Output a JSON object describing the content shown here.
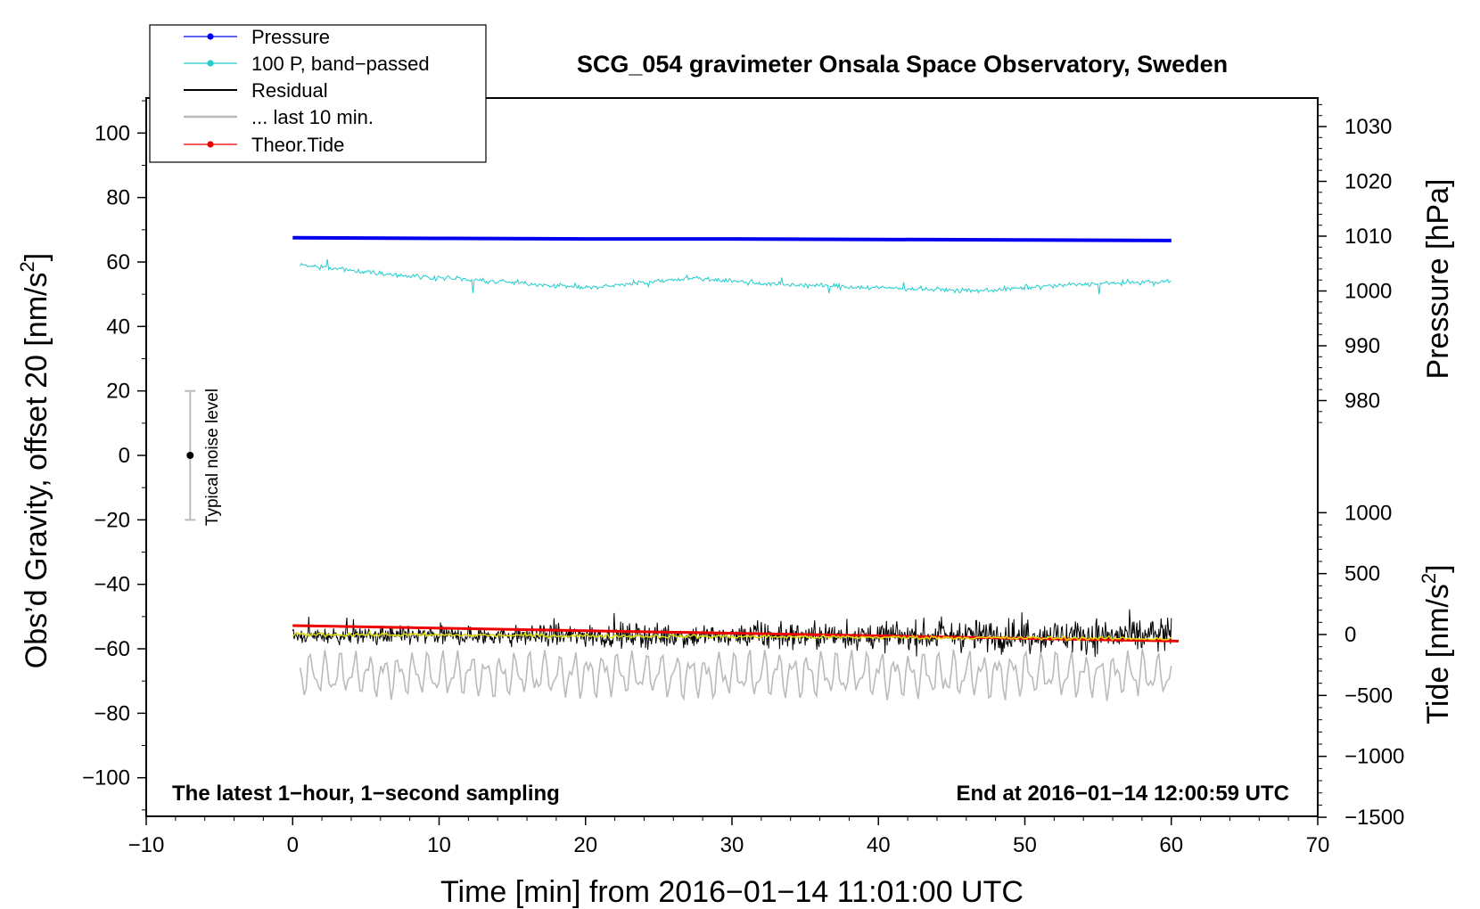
{
  "chart_data": {
    "type": "line",
    "title": "SCG_054 gravimeter Onsala Space Observatory, Sweden",
    "xlabel": "Time [min] from 2016−01−14 11:01:00 UTC",
    "ylabel_left": "Obs’d Gravity, offset 20 [nm/s",
    "ylabel_left_sup": "2",
    "ylabel_left_tail": "]",
    "ylabel_right_pressure": "Pressure [hPa]",
    "ylabel_right_tide": "Tide [nm/s",
    "ylabel_right_tide_sup": "2",
    "ylabel_right_tide_tail": "]",
    "xlim": [
      -10,
      70
    ],
    "ylim_left": [
      -110,
      112
    ],
    "x_ticks": [
      {
        "value": -10,
        "label": "−10"
      },
      {
        "value": 0,
        "label": "0"
      },
      {
        "value": 10,
        "label": "10"
      },
      {
        "value": 20,
        "label": "20"
      },
      {
        "value": 30,
        "label": "30"
      },
      {
        "value": 40,
        "label": "40"
      },
      {
        "value": 50,
        "label": "50"
      },
      {
        "value": 60,
        "label": "60"
      },
      {
        "value": 70,
        "label": "70"
      }
    ],
    "y_left_ticks": [
      {
        "value": 100,
        "label": "100"
      },
      {
        "value": 80,
        "label": "80"
      },
      {
        "value": 60,
        "label": "60"
      },
      {
        "value": 40,
        "label": "40"
      },
      {
        "value": 20,
        "label": "20"
      },
      {
        "value": 0,
        "label": "0"
      },
      {
        "value": -20,
        "label": "−20"
      },
      {
        "value": -40,
        "label": "−40"
      },
      {
        "value": -60,
        "label": "−60"
      },
      {
        "value": -80,
        "label": "−80"
      },
      {
        "value": -100,
        "label": "−100"
      }
    ],
    "pressure_axis": {
      "unit": "hPa",
      "ticks": [
        {
          "value": 1030,
          "label": "1030"
        },
        {
          "value": 1020,
          "label": "1020"
        },
        {
          "value": 1010,
          "label": "1010"
        },
        {
          "value": 1000,
          "label": "1000"
        },
        {
          "value": 990,
          "label": "990"
        },
        {
          "value": 980,
          "label": "980"
        }
      ]
    },
    "tide_axis": {
      "unit": "nm/s2",
      "ticks": [
        {
          "value": 1000,
          "label": "1000"
        },
        {
          "value": 500,
          "label": "500"
        },
        {
          "value": 0,
          "label": "0"
        },
        {
          "value": -500,
          "label": "−500"
        },
        {
          "value": -1000,
          "label": "−1000"
        },
        {
          "value": -1500,
          "label": "−1500"
        }
      ]
    },
    "series": [
      {
        "name": "Pressure",
        "color": "#0000ee",
        "type": "line",
        "x_range": [
          0,
          60
        ],
        "values": [
          1009.7,
          1009.6,
          1009.5,
          1009.5,
          1009.4,
          1009.3,
          1009.2
        ]
      },
      {
        "name": "100 P, band−passed",
        "color": "#22cccc",
        "type": "line",
        "x_range": [
          0.5,
          60
        ],
        "values_left_axis": [
          59,
          56,
          54,
          52,
          55,
          53,
          52,
          51,
          53,
          54
        ]
      },
      {
        "name": "Residual",
        "color": "#000000",
        "type": "line",
        "x_range": [
          0,
          60
        ],
        "mean_left_axis": -56,
        "noise_range": [
          -64,
          -42
        ]
      },
      {
        "name": "... last 10 min.",
        "color": "#bbbbbb",
        "type": "line",
        "x_range": [
          0.5,
          60
        ],
        "mean_left_axis": -68,
        "noise_range": [
          -80,
          -60
        ]
      },
      {
        "name": "Theor.Tide",
        "color": "#ee0000",
        "type": "line",
        "x": [
          0,
          60.5
        ],
        "values_left_axis": [
          -52.8,
          -57.6
        ]
      },
      {
        "name": "Smoothed",
        "color": "#dddd00",
        "type": "line",
        "x_range": [
          0,
          60
        ],
        "mean_left_axis": -55.5
      }
    ],
    "noise_indicator": {
      "label": "Typical noise level",
      "x": -7,
      "center": 0,
      "range": [
        -20,
        20
      ]
    },
    "annotations": {
      "bottom_left": "The latest 1−hour, 1−second sampling",
      "bottom_right": "End at 2016−01−14 12:00:59 UTC"
    },
    "legend": {
      "position": "top-left",
      "entries": [
        {
          "label": "Pressure",
          "color": "#0000ee",
          "marker": true
        },
        {
          "label": "100 P, band−passed",
          "color": "#22cccc",
          "marker": true
        },
        {
          "label": "Residual",
          "color": "#000000",
          "marker": false
        },
        {
          "label": "... last 10 min.",
          "color": "#bbbbbb",
          "marker": false
        },
        {
          "label": "Theor.Tide",
          "color": "#ee0000",
          "marker": true
        }
      ]
    }
  }
}
